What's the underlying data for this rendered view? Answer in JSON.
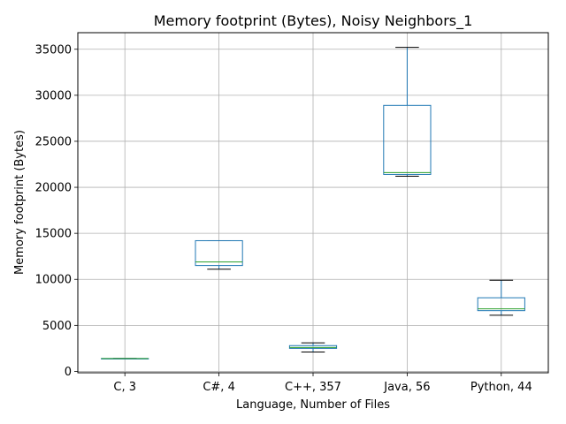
{
  "chart_data": {
    "type": "box",
    "title": "Memory footprint (Bytes), Noisy Neighbors_1",
    "xlabel": "Language, Number of Files",
    "ylabel": "Memory footprint (Bytes)",
    "ylim": [
      -150,
      36800
    ],
    "yticks": [
      0,
      5000,
      10000,
      15000,
      20000,
      25000,
      30000,
      35000
    ],
    "grid": true,
    "colors": {
      "box": "#1f77b4",
      "median": "#2ca02c",
      "whisker_cap": "#000000",
      "grid": "#b0b0b0"
    },
    "categories": [
      "C, 3",
      "C#, 4",
      "C++, 357",
      "Java, 56",
      "Python, 44"
    ],
    "boxes": [
      {
        "whislo": 1400,
        "q1": 1400,
        "med": 1400,
        "q3": 1400,
        "whishi": 1400
      },
      {
        "whislo": 11100,
        "q1": 11500,
        "med": 11900,
        "q3": 14200,
        "whishi": 14200
      },
      {
        "whislo": 2100,
        "q1": 2500,
        "med": 2600,
        "q3": 2800,
        "whishi": 3100
      },
      {
        "whislo": 21200,
        "q1": 21400,
        "med": 21600,
        "q3": 28900,
        "whishi": 35200
      },
      {
        "whislo": 6100,
        "q1": 6600,
        "med": 6800,
        "q3": 8000,
        "whishi": 9900
      }
    ]
  }
}
